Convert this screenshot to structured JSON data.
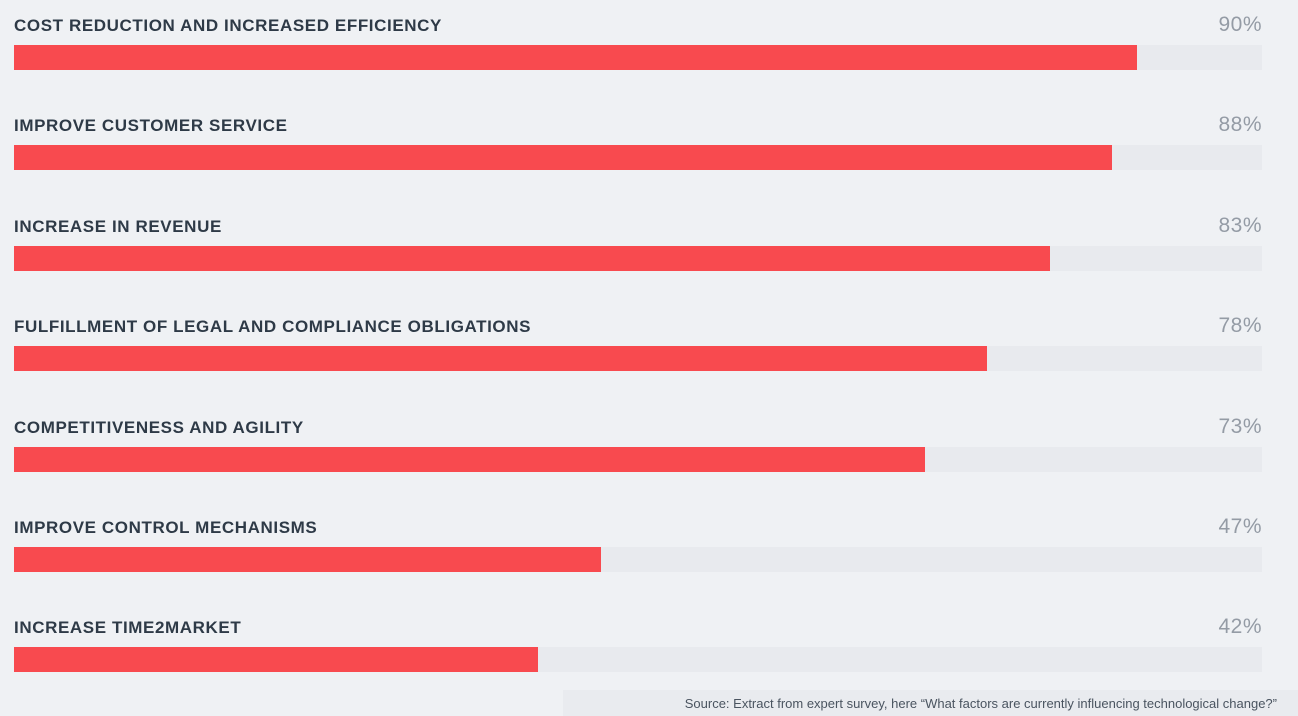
{
  "chart_data": {
    "type": "bar",
    "orientation": "horizontal",
    "unit": "%",
    "xlim": [
      0,
      100
    ],
    "grid": false,
    "legend": "none",
    "categories": [
      "COST REDUCTION AND INCREASED EFFICIENCY",
      "IMPROVE CUSTOMER SERVICE",
      "INCREASE IN REVENUE",
      "FULFILLMENT OF LEGAL AND COMPLIANCE OBLIGATIONS",
      "COMPETITIVENESS AND AGILITY",
      "IMPROVE CONTROL MECHANISMS",
      "INCREASE TIME2MARKET"
    ],
    "values": [
      90,
      88,
      83,
      78,
      73,
      47,
      42
    ],
    "value_labels": [
      "90%",
      "88%",
      "83%",
      "78%",
      "73%",
      "47%",
      "42%"
    ]
  },
  "footer": {
    "source_text": "Source: Extract from expert survey, here “What factors are currently influencing technological change?”"
  },
  "colors": {
    "background": "#EFF1F4",
    "bar": "#F84A4F",
    "track": "#E8EAEE",
    "category_label": "#2E3A47",
    "value_label": "#949BA5",
    "source_strip": "#E9EBEF",
    "source_text": "#4A5460"
  }
}
